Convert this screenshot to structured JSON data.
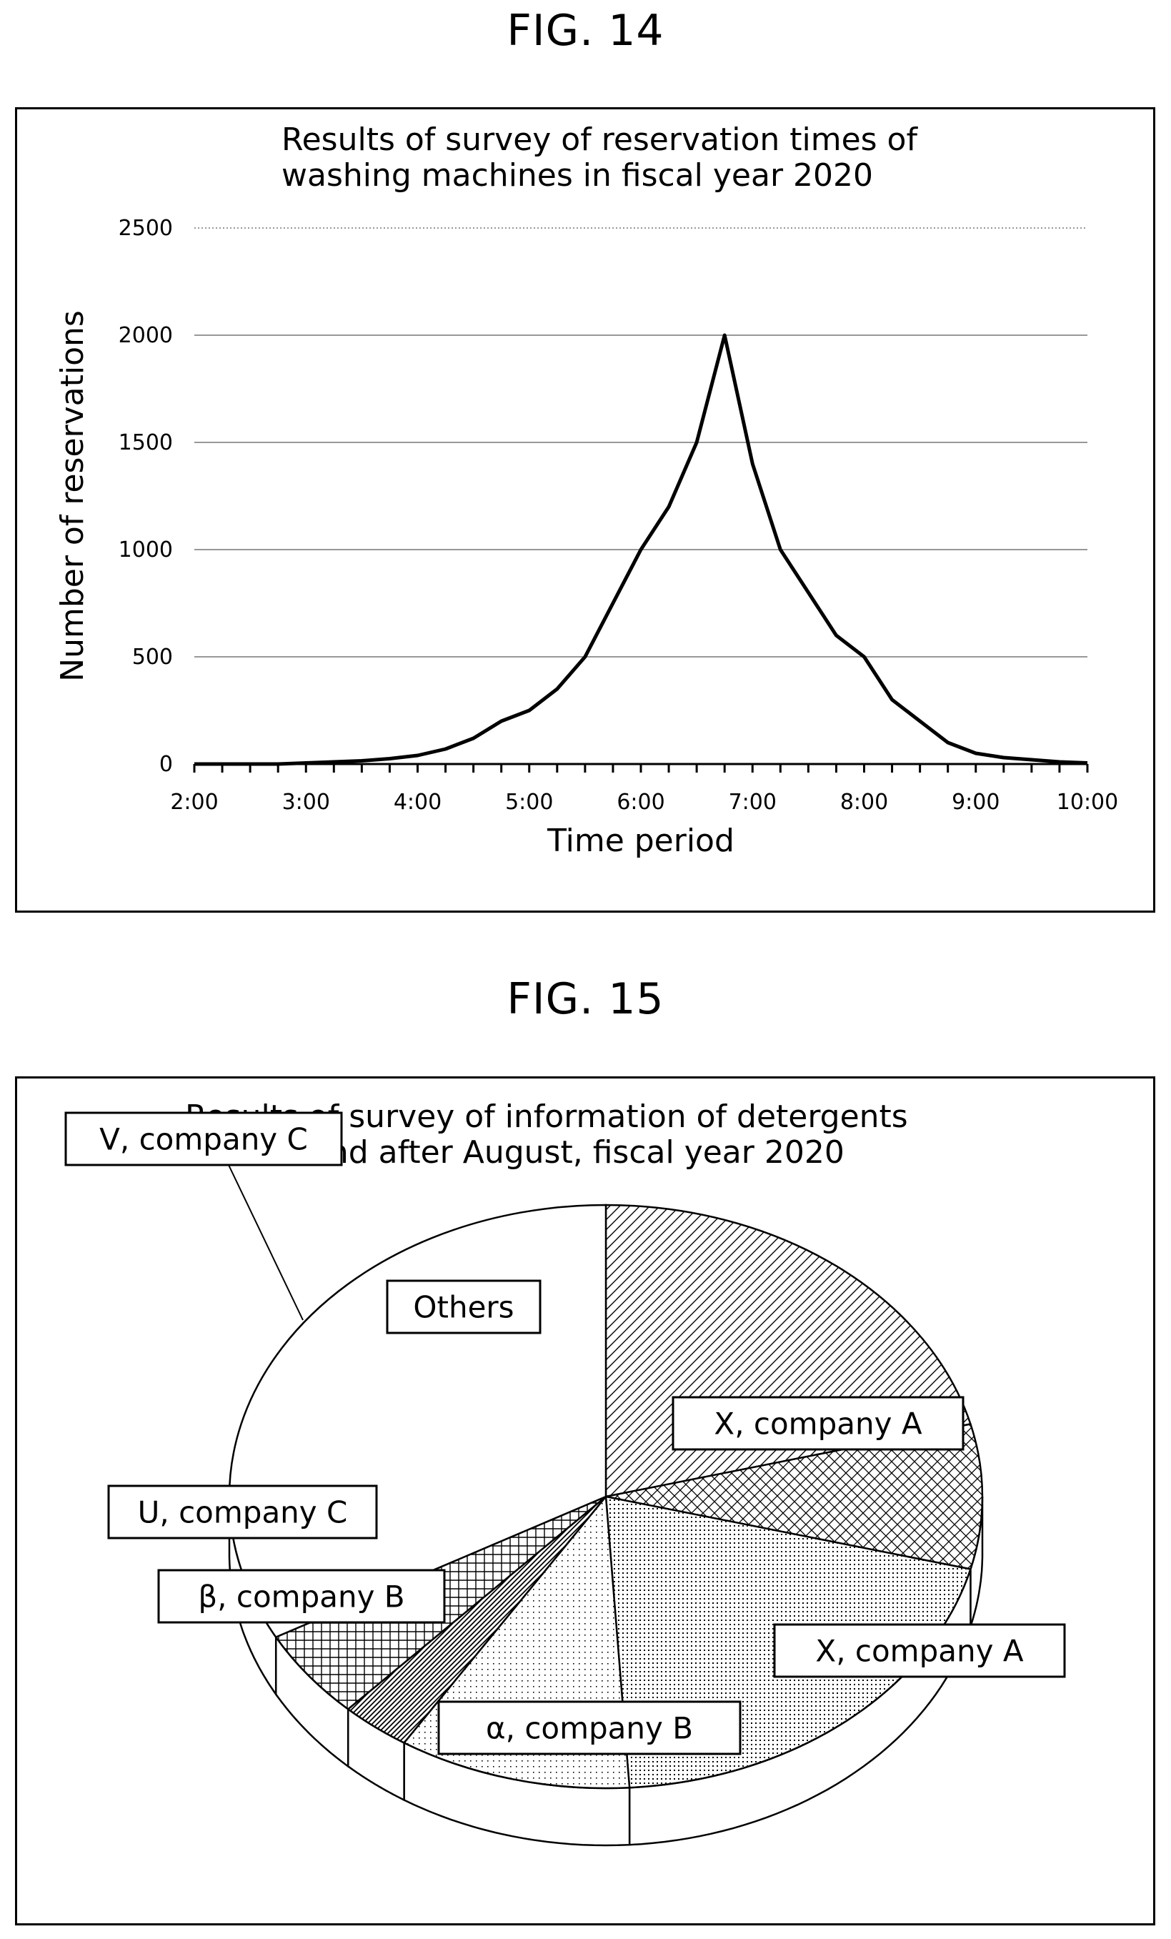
{
  "figures": {
    "fig14_label": "FIG. 14",
    "fig15_label": "FIG. 15"
  },
  "chart_data": [
    {
      "type": "line",
      "title_lines": [
        "Results of survey of reservation times of",
        "washing machines in fiscal year 2020"
      ],
      "xlabel": "Time period",
      "ylabel": "Number of reservations",
      "x_ticks": [
        "2:00",
        "3:00",
        "4:00",
        "5:00",
        "6:00",
        "7:00",
        "8:00",
        "9:00",
        "10:00"
      ],
      "y_ticks": [
        0,
        500,
        1000,
        1500,
        2000,
        2500
      ],
      "xlim": [
        2,
        10
      ],
      "ylim": [
        0,
        2500
      ],
      "grid": "horizontal",
      "x": [
        2.0,
        2.25,
        2.5,
        2.75,
        3.0,
        3.25,
        3.5,
        3.75,
        4.0,
        4.25,
        4.5,
        4.75,
        5.0,
        5.25,
        5.5,
        5.75,
        6.0,
        6.25,
        6.5,
        6.75,
        7.0,
        7.25,
        7.5,
        7.75,
        8.0,
        8.25,
        8.5,
        8.75,
        9.0,
        9.25,
        9.5,
        9.75,
        10.0
      ],
      "y": [
        0,
        0,
        0,
        0,
        5,
        10,
        15,
        25,
        40,
        70,
        120,
        200,
        250,
        350,
        500,
        750,
        1000,
        1200,
        1500,
        2000,
        1400,
        1000,
        800,
        600,
        500,
        300,
        200,
        100,
        50,
        30,
        20,
        10,
        5
      ]
    },
    {
      "type": "pie",
      "title_lines": [
        "Results of survey of information of detergents",
        "used in and after August, fiscal year 2020"
      ],
      "slices": [
        {
          "label": "X, company A",
          "value": 21,
          "pattern": "diagonal"
        },
        {
          "label": "X, company A",
          "value": 8,
          "pattern": "crosshatch"
        },
        {
          "label": "α, company B",
          "value": 20,
          "pattern": "dense-dots"
        },
        {
          "label": "β, company B",
          "value": 10,
          "pattern": "sparse-dots"
        },
        {
          "label": "U, company C",
          "value": 3,
          "pattern": "dense-diagonal"
        },
        {
          "label": "V, company C",
          "value": 5,
          "pattern": "grid"
        },
        {
          "label": "Others",
          "value": 33,
          "pattern": "none"
        }
      ]
    }
  ]
}
